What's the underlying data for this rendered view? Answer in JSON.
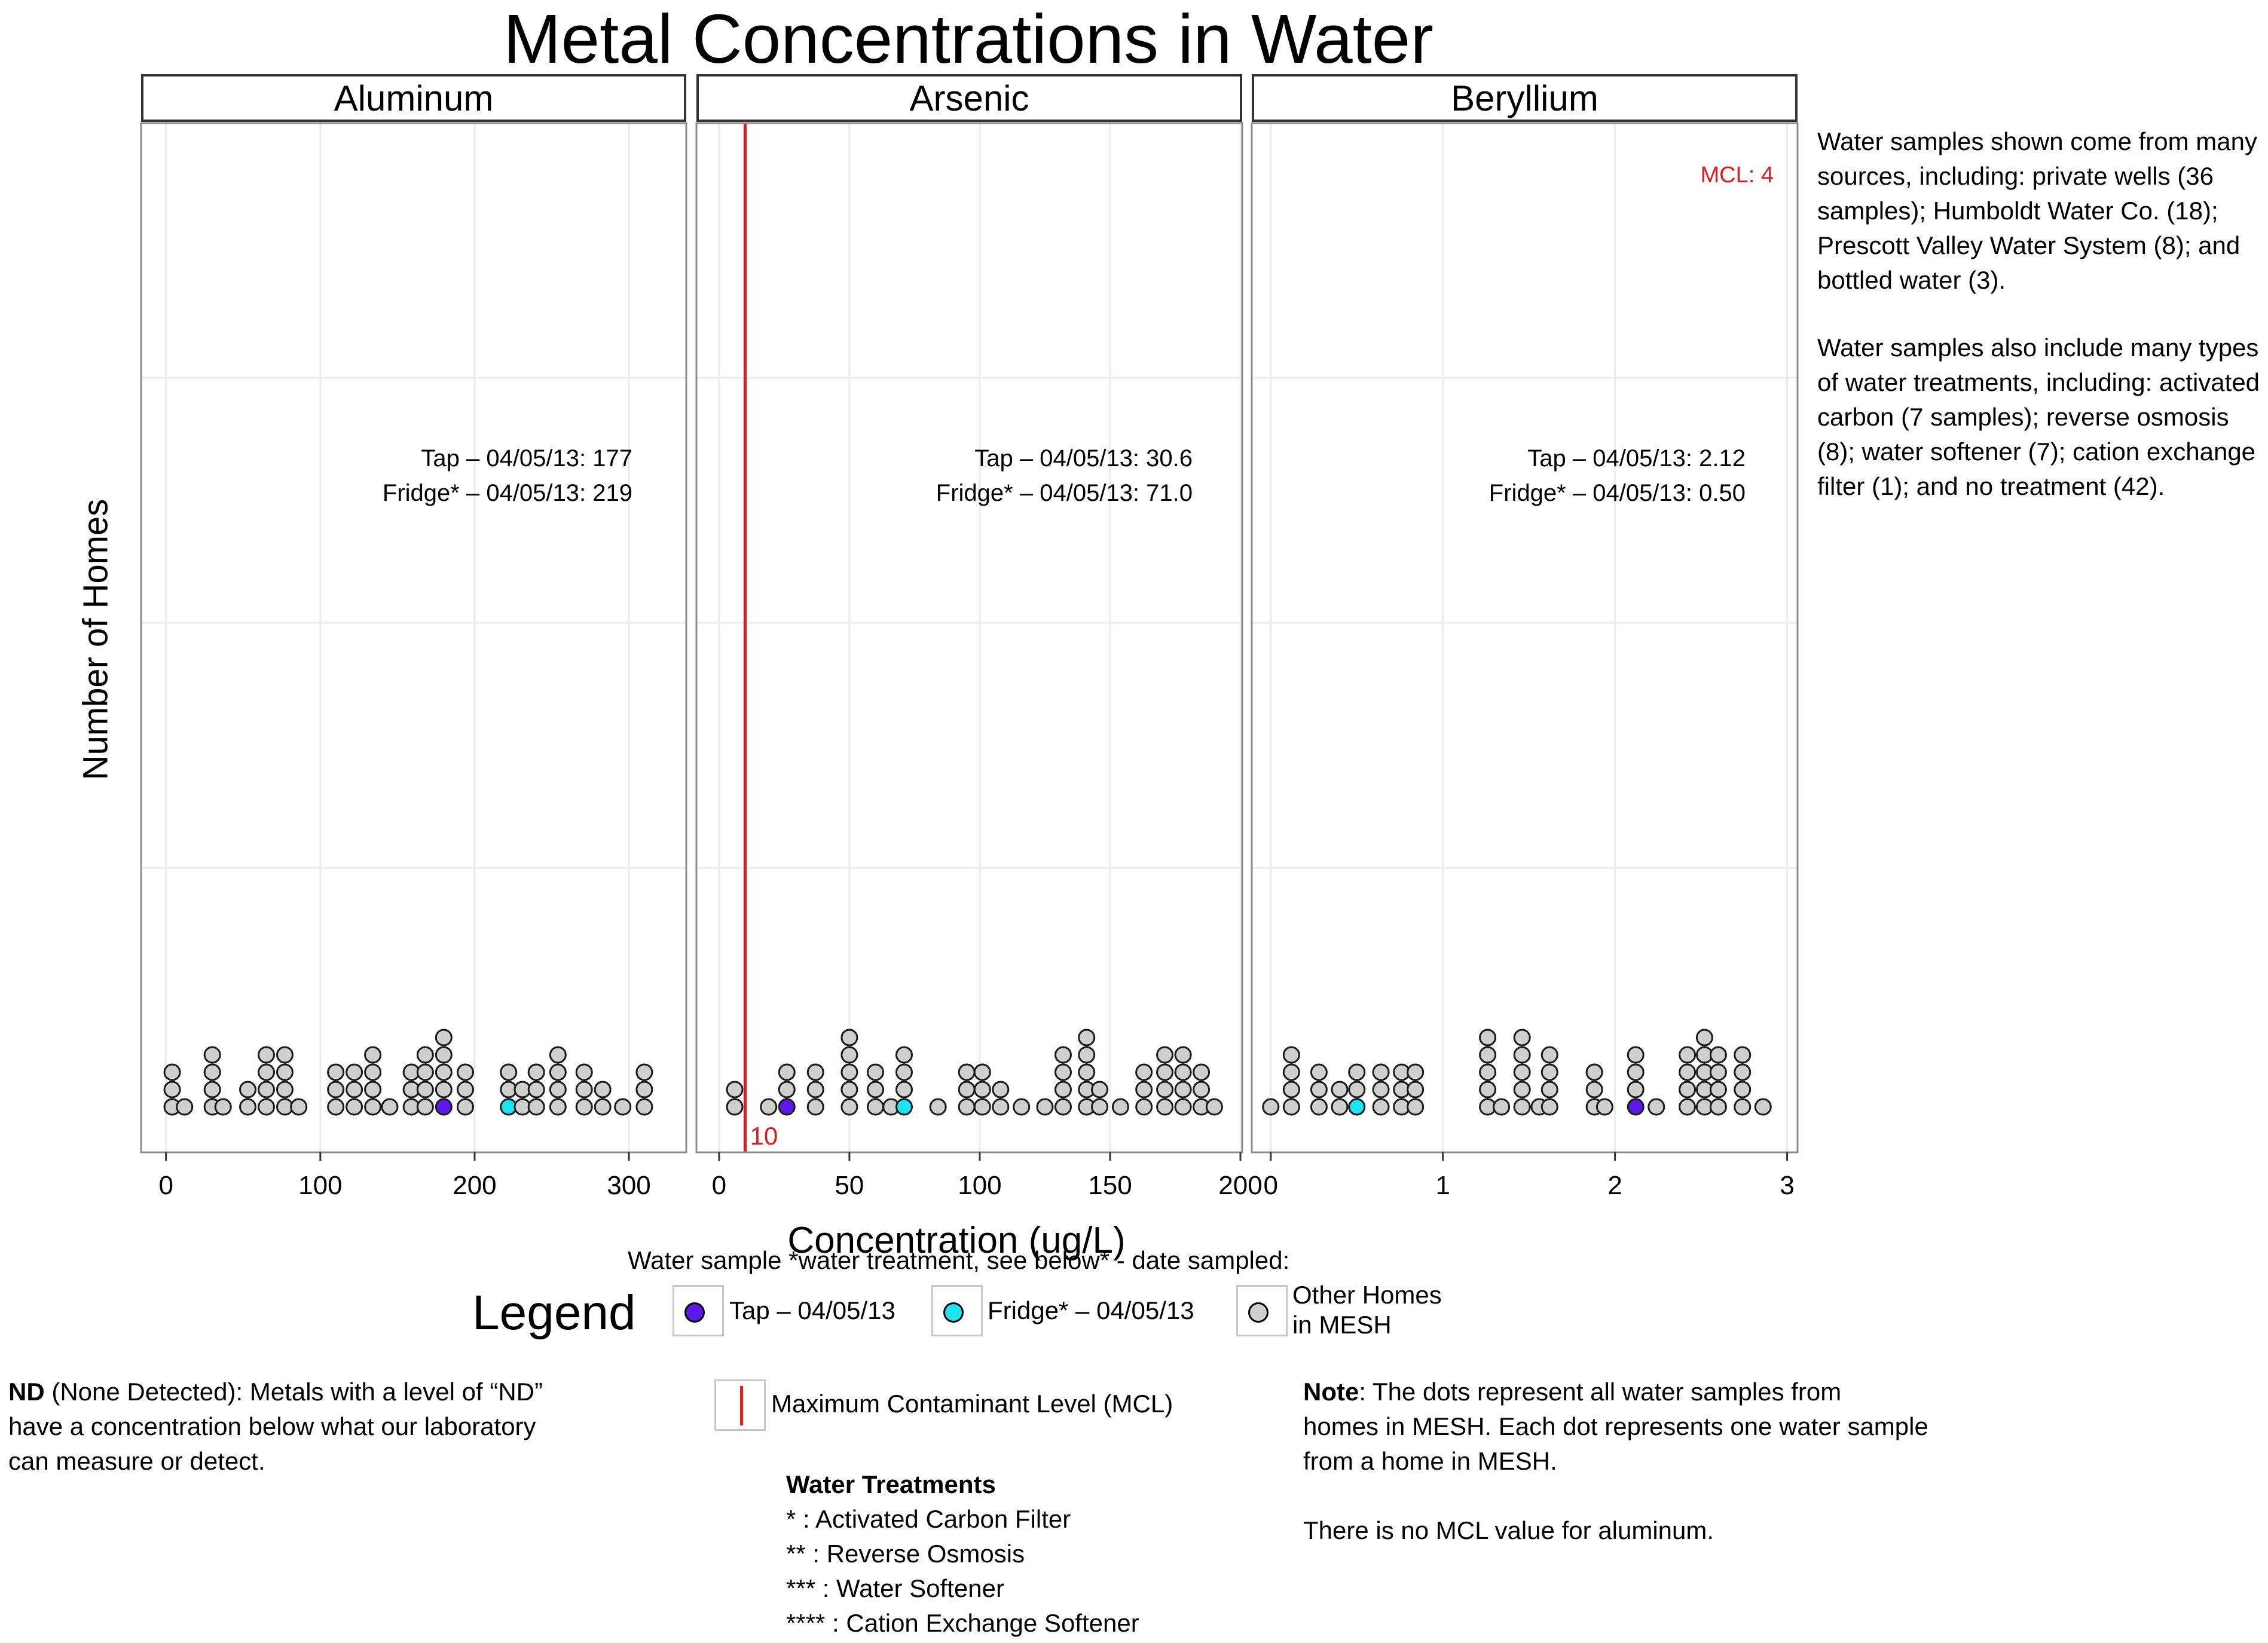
{
  "title": "Metal Concentrations in Water",
  "ylabel": "Number of Homes",
  "xlabel": "Concentration (ug/L)",
  "colors": {
    "tap": "#5b18e8",
    "fridge": "#1ee3f0",
    "other": "#cfcfcf",
    "mcl": "#e31a1c",
    "grid": "#ebebeb"
  },
  "chart_data": [
    {
      "type": "dotplot",
      "panel": "Aluminum",
      "xlim": [
        -15,
        336
      ],
      "xticks": [
        0,
        100,
        200,
        300
      ],
      "binwidth": 12.2,
      "tap": {
        "label": "Tap – 04/05/13: 177",
        "value": 177
      },
      "fridge": {
        "label": "Fridge* – 04/05/13: 219",
        "value": 219
      },
      "mcl": null,
      "stacks": [
        [
          4,
          3
        ],
        [
          12,
          1
        ],
        [
          30,
          4
        ],
        [
          37,
          1
        ],
        [
          53,
          2
        ],
        [
          65,
          4
        ],
        [
          77,
          4
        ],
        [
          86,
          1
        ],
        [
          110,
          3
        ],
        [
          122,
          3
        ],
        [
          134,
          4
        ],
        [
          145,
          1
        ],
        [
          159,
          3
        ],
        [
          168,
          4
        ],
        [
          180,
          5
        ],
        [
          194,
          3
        ],
        [
          222,
          3
        ],
        [
          231,
          2
        ],
        [
          240,
          3
        ],
        [
          254,
          4
        ],
        [
          271,
          3
        ],
        [
          283,
          2
        ],
        [
          296,
          1
        ],
        [
          310,
          3
        ]
      ],
      "highlights": [
        {
          "x": 180,
          "kind": "tap"
        },
        {
          "x": 222,
          "kind": "fridge"
        }
      ]
    },
    {
      "type": "dotplot",
      "panel": "Arsenic",
      "xlim": [
        -8,
        200
      ],
      "xticks": [
        0,
        50,
        100,
        150,
        200
      ],
      "binwidth": 7.3,
      "tap": {
        "label": "Tap – 04/05/13: 30.6",
        "value": 30.6
      },
      "fridge": {
        "label": "Fridge* – 04/05/13: 71.0",
        "value": 71.0
      },
      "mcl": {
        "value": 10,
        "label": "10"
      },
      "stacks": [
        [
          6,
          2
        ],
        [
          19,
          1
        ],
        [
          26,
          3
        ],
        [
          37,
          3
        ],
        [
          50,
          5
        ],
        [
          60,
          3
        ],
        [
          66,
          1
        ],
        [
          71,
          4
        ],
        [
          84,
          1
        ],
        [
          95,
          3
        ],
        [
          101,
          3
        ],
        [
          108,
          2
        ],
        [
          116,
          1
        ],
        [
          125,
          1
        ],
        [
          132,
          4
        ],
        [
          141,
          5
        ],
        [
          146,
          2
        ],
        [
          154,
          1
        ],
        [
          163,
          3
        ],
        [
          171,
          4
        ],
        [
          178,
          4
        ],
        [
          185,
          3
        ],
        [
          190,
          1
        ]
      ],
      "highlights": [
        {
          "x": 26,
          "kind": "tap"
        },
        {
          "x": 71,
          "kind": "fridge"
        }
      ]
    },
    {
      "type": "dotplot",
      "panel": "Beryllium",
      "xlim": [
        -0.1,
        3.05
      ],
      "xticks": [
        0,
        1,
        2,
        3
      ],
      "binwidth": 0.12,
      "tap": {
        "label": "Tap – 04/05/13: 2.12",
        "value": 2.12
      },
      "fridge": {
        "label": "Fridge* – 04/05/13: 0.50",
        "value": 0.5
      },
      "mcl": {
        "value": 4,
        "label": "MCL: 4"
      },
      "stacks": [
        [
          0,
          1
        ],
        [
          0.12,
          4
        ],
        [
          0.28,
          3
        ],
        [
          0.4,
          2
        ],
        [
          0.5,
          3
        ],
        [
          0.64,
          3
        ],
        [
          0.76,
          3
        ],
        [
          0.84,
          3
        ],
        [
          1.26,
          5
        ],
        [
          1.34,
          1
        ],
        [
          1.46,
          5
        ],
        [
          1.56,
          1
        ],
        [
          1.62,
          4
        ],
        [
          1.88,
          3
        ],
        [
          1.94,
          1
        ],
        [
          2.12,
          4
        ],
        [
          2.24,
          1
        ],
        [
          2.42,
          4
        ],
        [
          2.52,
          5
        ],
        [
          2.6,
          4
        ],
        [
          2.74,
          4
        ],
        [
          2.86,
          1
        ]
      ],
      "highlights": [
        {
          "x": 2.12,
          "kind": "tap"
        },
        {
          "x": 0.5,
          "kind": "fridge"
        }
      ]
    }
  ],
  "notes": {
    "sources": "Water samples shown come from many sources, including: private wells (36 samples); Humboldt Water Co. (18); Prescott Valley Water System (8); and bottled water (3).",
    "treatments": "Water samples also include many types of water treatments, including: activated carbon (7 samples); reverse osmosis (8); water softener (7); cation exchange filter (1); and no treatment (42)."
  },
  "legend": {
    "caption": "Water sample *water treatment, see below* - date sampled:",
    "title": "Legend",
    "tap": "Tap – 04/05/13",
    "fridge": "Fridge* – 04/05/13",
    "other_line1": "Other Homes",
    "other_line2": "in MESH",
    "mcl": "Maximum Contaminant Level (MCL)"
  },
  "nd": {
    "bold": "ND",
    "line1": " (None Detected): Metals with a level of “ND”",
    "line2": "have a concentration below what our laboratory",
    "line3": "can measure or detect."
  },
  "water_treatments": {
    "title": "Water Treatments",
    "items": [
      "* : Activated Carbon Filter",
      "** : Reverse Osmosis",
      "*** :  Water Softener",
      "**** : Cation Exchange Softener"
    ]
  },
  "note": {
    "bold": "Note",
    "line1": ": The dots represent all water samples from",
    "line2": "homes in MESH. Each dot represents one water sample",
    "line3": "from a home in MESH.",
    "line4": "There is no MCL value for aluminum."
  }
}
